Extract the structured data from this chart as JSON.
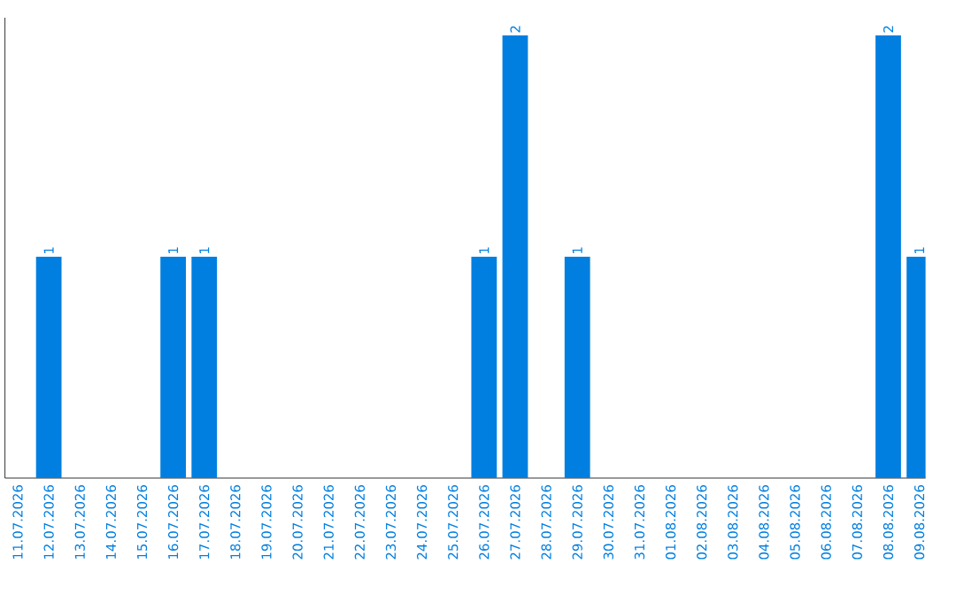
{
  "chart_data": {
    "type": "bar",
    "categories": [
      "11.07.2026",
      "12.07.2026",
      "13.07.2026",
      "14.07.2026",
      "15.07.2026",
      "16.07.2026",
      "17.07.2026",
      "18.07.2026",
      "19.07.2026",
      "20.07.2026",
      "21.07.2026",
      "22.07.2026",
      "23.07.2026",
      "24.07.2026",
      "25.07.2026",
      "26.07.2026",
      "27.07.2026",
      "28.07.2026",
      "29.07.2026",
      "30.07.2026",
      "31.07.2026",
      "01.08.2026",
      "02.08.2026",
      "03.08.2026",
      "04.08.2026",
      "05.08.2026",
      "06.08.2026",
      "07.08.2026",
      "08.08.2026",
      "09.08.2026"
    ],
    "values": [
      0,
      1,
      0,
      0,
      0,
      1,
      1,
      0,
      0,
      0,
      0,
      0,
      0,
      0,
      0,
      1,
      2,
      0,
      1,
      0,
      0,
      0,
      0,
      0,
      0,
      0,
      0,
      0,
      2,
      1
    ],
    "value_labels": [
      null,
      "1",
      null,
      null,
      null,
      "1",
      "1",
      null,
      null,
      null,
      null,
      null,
      null,
      null,
      null,
      "1",
      "2",
      null,
      "1",
      null,
      null,
      null,
      null,
      null,
      null,
      null,
      null,
      null,
      "2",
      "1"
    ],
    "color": "#007fe0",
    "tick_labels": "x"
  }
}
